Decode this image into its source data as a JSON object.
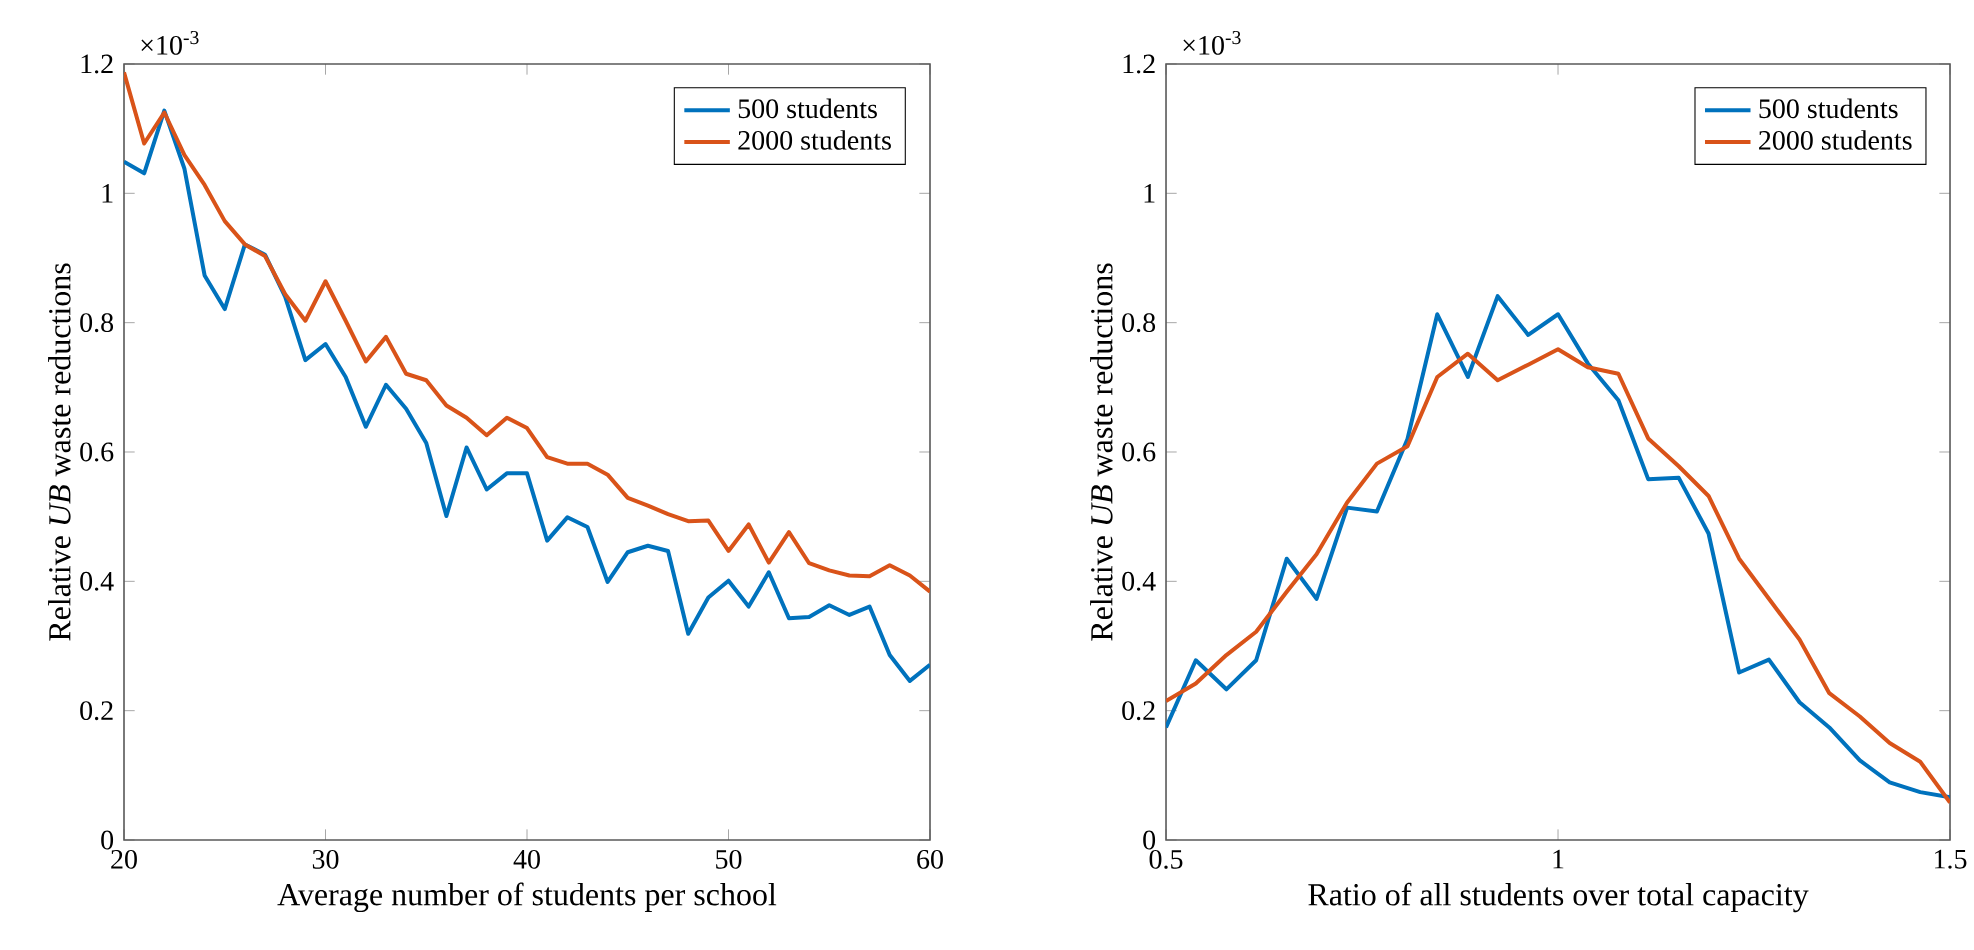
{
  "chart_data": [
    {
      "type": "line",
      "xlabel": "Average number of students per school",
      "ylabel": "Relative *UB* waste reductions",
      "annotations": [
        "×10$^{-3}$"
      ],
      "x": [
        20,
        21,
        22,
        23,
        24,
        25,
        26,
        27,
        28,
        29,
        30,
        31,
        32,
        33,
        34,
        35,
        36,
        37,
        38,
        39,
        40,
        41,
        42,
        43,
        44,
        45,
        46,
        47,
        48,
        49,
        50,
        51,
        52,
        53,
        54,
        55,
        56,
        57,
        58,
        59,
        60
      ],
      "series": [
        {
          "name": "500 students",
          "color": "#0072bd",
          "values": [
            1.049,
            1.031,
            1.128,
            1.038,
            0.873,
            0.821,
            0.921,
            0.905,
            0.84,
            0.742,
            0.767,
            0.716,
            0.639,
            0.704,
            0.667,
            0.614,
            0.501,
            0.607,
            0.542,
            0.567,
            0.567,
            0.463,
            0.499,
            0.484,
            0.399,
            0.445,
            0.455,
            0.447,
            0.319,
            0.375,
            0.401,
            0.361,
            0.414,
            0.343,
            0.345,
            0.363,
            0.348,
            0.361,
            0.286,
            0.246,
            0.271
          ]
        },
        {
          "name": "2000 students",
          "color": "#d95319",
          "values": [
            1.187,
            1.077,
            1.125,
            1.059,
            1.013,
            0.957,
            0.921,
            0.903,
            0.844,
            0.803,
            0.864,
            0.803,
            0.74,
            0.778,
            0.721,
            0.711,
            0.672,
            0.653,
            0.626,
            0.653,
            0.637,
            0.592,
            0.582,
            0.582,
            0.565,
            0.529,
            0.517,
            0.504,
            0.493,
            0.494,
            0.447,
            0.488,
            0.429,
            0.476,
            0.428,
            0.417,
            0.409,
            0.408,
            0.425,
            0.409,
            0.384
          ]
        }
      ],
      "xlim": [
        20,
        60
      ],
      "ylim": [
        0,
        1.2
      ],
      "xticks": [
        20,
        30,
        40,
        50,
        60
      ],
      "yticks": [
        0,
        0.2,
        0.4,
        0.6,
        0.8,
        1,
        1.2
      ],
      "legend": "top right"
    },
    {
      "type": "line",
      "xlabel": "Ratio of all students over total capacity",
      "ylabel": "Relative *UB* waste reductions",
      "annotations": [
        "×10$^{-3}$"
      ],
      "x": [
        0.5,
        0.538,
        0.577,
        0.615,
        0.654,
        0.692,
        0.731,
        0.769,
        0.808,
        0.846,
        0.885,
        0.923,
        0.962,
        1.0,
        1.038,
        1.077,
        1.115,
        1.154,
        1.192,
        1.231,
        1.269,
        1.308,
        1.346,
        1.385,
        1.423,
        1.462,
        1.5
      ],
      "series": [
        {
          "name": "500 students",
          "color": "#0072bd",
          "values": [
            0.174,
            0.278,
            0.233,
            0.278,
            0.435,
            0.373,
            0.514,
            0.508,
            0.62,
            0.813,
            0.716,
            0.841,
            0.781,
            0.813,
            0.737,
            0.68,
            0.558,
            0.56,
            0.474,
            0.259,
            0.279,
            0.213,
            0.174,
            0.123,
            0.089,
            0.074,
            0.066
          ]
        },
        {
          "name": "2000 students",
          "color": "#d95319",
          "values": [
            0.215,
            0.242,
            0.286,
            0.322,
            0.384,
            0.442,
            0.522,
            0.582,
            0.609,
            0.716,
            0.752,
            0.711,
            0.735,
            0.759,
            0.731,
            0.721,
            0.621,
            0.578,
            0.532,
            0.435,
            0.373,
            0.31,
            0.227,
            0.191,
            0.15,
            0.121,
            0.058
          ]
        }
      ],
      "xlim": [
        0.5,
        1.5
      ],
      "ylim": [
        0,
        1.2
      ],
      "xticks": [
        0.5,
        1,
        1.5
      ],
      "yticks": [
        0,
        0.2,
        0.4,
        0.6,
        0.8,
        1,
        1.2
      ],
      "legend": "top right"
    }
  ]
}
